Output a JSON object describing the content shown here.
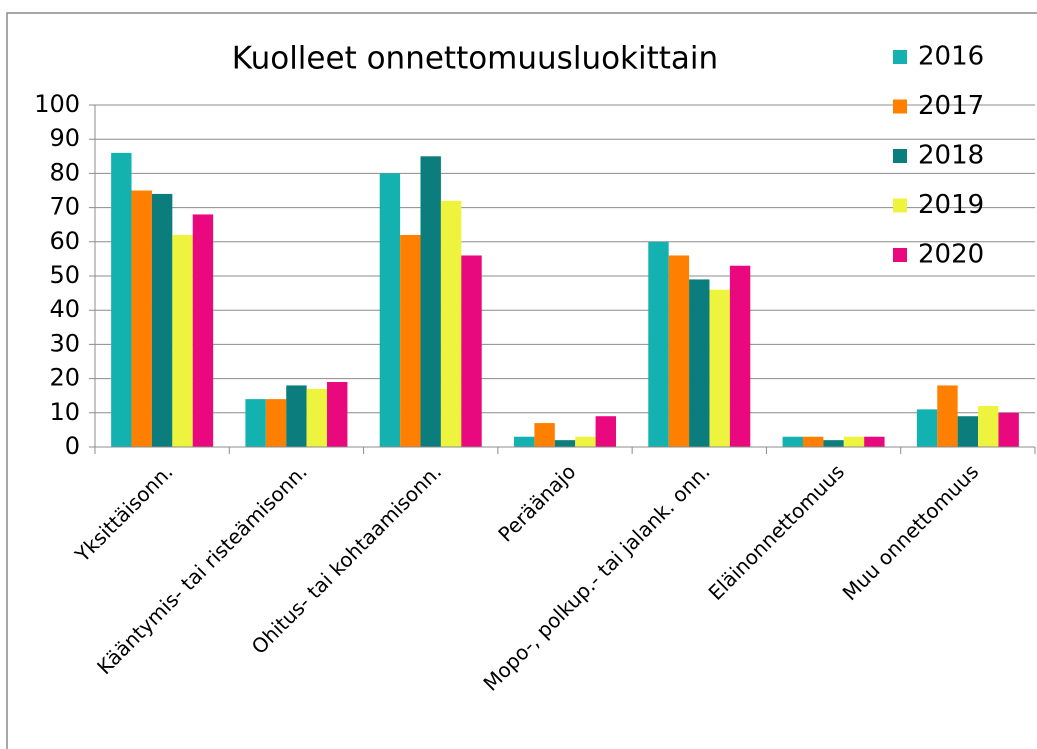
{
  "chart_data": {
    "type": "bar",
    "title": "Kuolleet onnettomuusluokittain",
    "categories": [
      "Yksittäisonn.",
      "Kääntymis- tai risteämisonn.",
      "Ohitus- tai kohtaamisonn.",
      "Peräänajo",
      "Mopo-, polkup.- tai jalank. onn.",
      "Eläinonnettomuus",
      "Muu onnettomuus"
    ],
    "series": [
      {
        "name": "2016",
        "color": "#14b1b1",
        "values": [
          86,
          14,
          80,
          3,
          60,
          3,
          11
        ]
      },
      {
        "name": "2017",
        "color": "#ff8000",
        "values": [
          75,
          14,
          62,
          7,
          56,
          3,
          18
        ]
      },
      {
        "name": "2018",
        "color": "#0a7d7c",
        "values": [
          74,
          18,
          85,
          2,
          49,
          2,
          9
        ]
      },
      {
        "name": "2019",
        "color": "#eef43e",
        "values": [
          62,
          17,
          72,
          3,
          46,
          3,
          12
        ]
      },
      {
        "name": "2020",
        "color": "#e9087e",
        "values": [
          68,
          19,
          56,
          9,
          53,
          3,
          10
        ]
      }
    ],
    "ylim": [
      0,
      100
    ],
    "yticks": [
      0,
      10,
      20,
      30,
      40,
      50,
      60,
      70,
      80,
      90,
      100
    ],
    "grid": true,
    "legend": "right"
  }
}
